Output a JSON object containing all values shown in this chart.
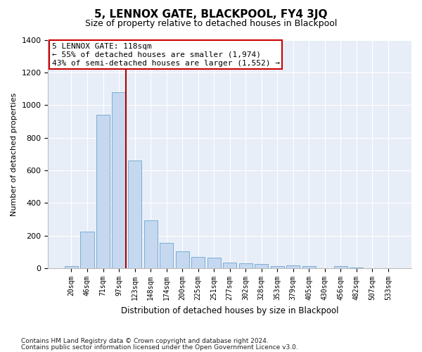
{
  "title": "5, LENNOX GATE, BLACKPOOL, FY4 3JQ",
  "subtitle": "Size of property relative to detached houses in Blackpool",
  "xlabel": "Distribution of detached houses by size in Blackpool",
  "ylabel": "Number of detached properties",
  "categories": [
    "20sqm",
    "46sqm",
    "71sqm",
    "97sqm",
    "123sqm",
    "148sqm",
    "174sqm",
    "200sqm",
    "225sqm",
    "251sqm",
    "277sqm",
    "302sqm",
    "328sqm",
    "353sqm",
    "379sqm",
    "405sqm",
    "430sqm",
    "456sqm",
    "482sqm",
    "507sqm",
    "533sqm"
  ],
  "values": [
    15,
    225,
    940,
    1080,
    660,
    295,
    155,
    105,
    70,
    65,
    35,
    30,
    25,
    15,
    20,
    15,
    0,
    15,
    5,
    0,
    0
  ],
  "bar_color": "#c5d8f0",
  "bar_edge_color": "#7aadd4",
  "vline_bin_index": 3,
  "annotation_title": "5 LENNOX GATE: 118sqm",
  "annotation_line1": "← 55% of detached houses are smaller (1,974)",
  "annotation_line2": "43% of semi-detached houses are larger (1,552) →",
  "vline_color": "#aa0000",
  "annotation_box_edgecolor": "#cc0000",
  "ylim": [
    0,
    1400
  ],
  "yticks": [
    0,
    200,
    400,
    600,
    800,
    1000,
    1200,
    1400
  ],
  "bg_color": "#e8eef8",
  "footer_line1": "Contains HM Land Registry data © Crown copyright and database right 2024.",
  "footer_line2": "Contains public sector information licensed under the Open Government Licence v3.0."
}
